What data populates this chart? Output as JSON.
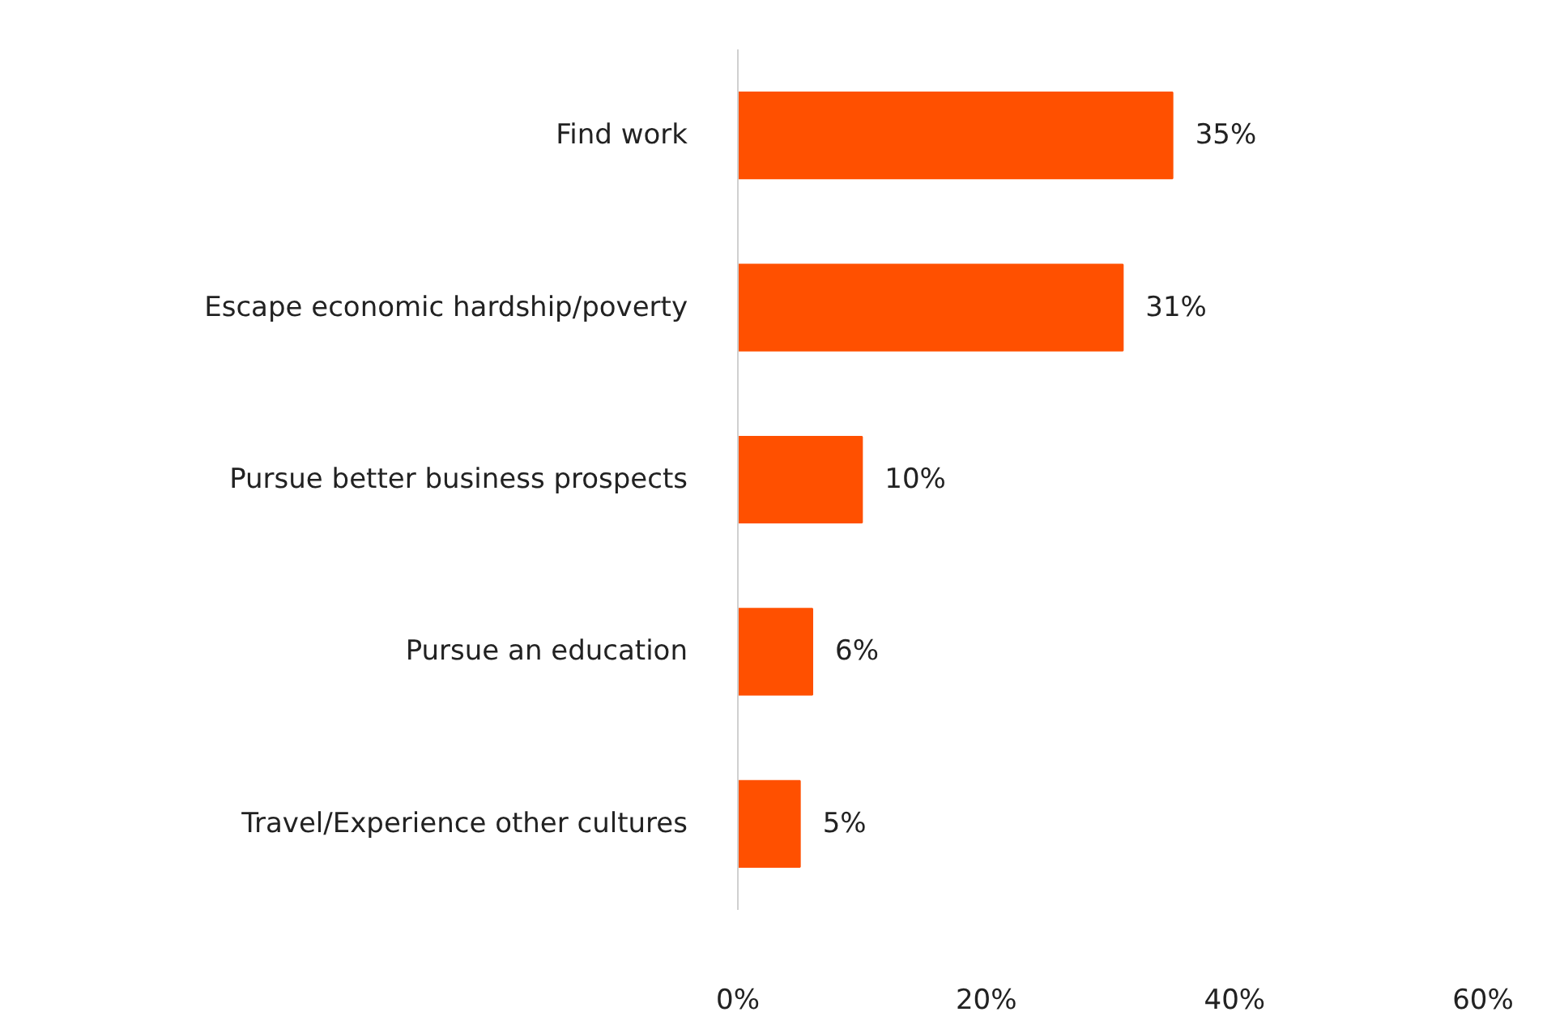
{
  "chart_data": {
    "type": "bar",
    "orientation": "horizontal",
    "categories": [
      "Find work",
      "Escape economic hardship/poverty",
      "Pursue better business prospects",
      "Pursue an education",
      "Travel/Experience other cultures"
    ],
    "values": [
      35,
      31,
      10,
      6,
      5
    ],
    "color": "#ff5000",
    "value_labels": [
      "35%",
      "31%",
      "10%",
      "6%",
      "5%"
    ],
    "xlim": [
      0,
      60
    ],
    "xticks": [
      {
        "value": 0,
        "label": "0%"
      },
      {
        "value": 20,
        "label": "20%"
      },
      {
        "value": 40,
        "label": "40%"
      },
      {
        "value": 60,
        "label": "60%"
      }
    ],
    "grid": false
  }
}
